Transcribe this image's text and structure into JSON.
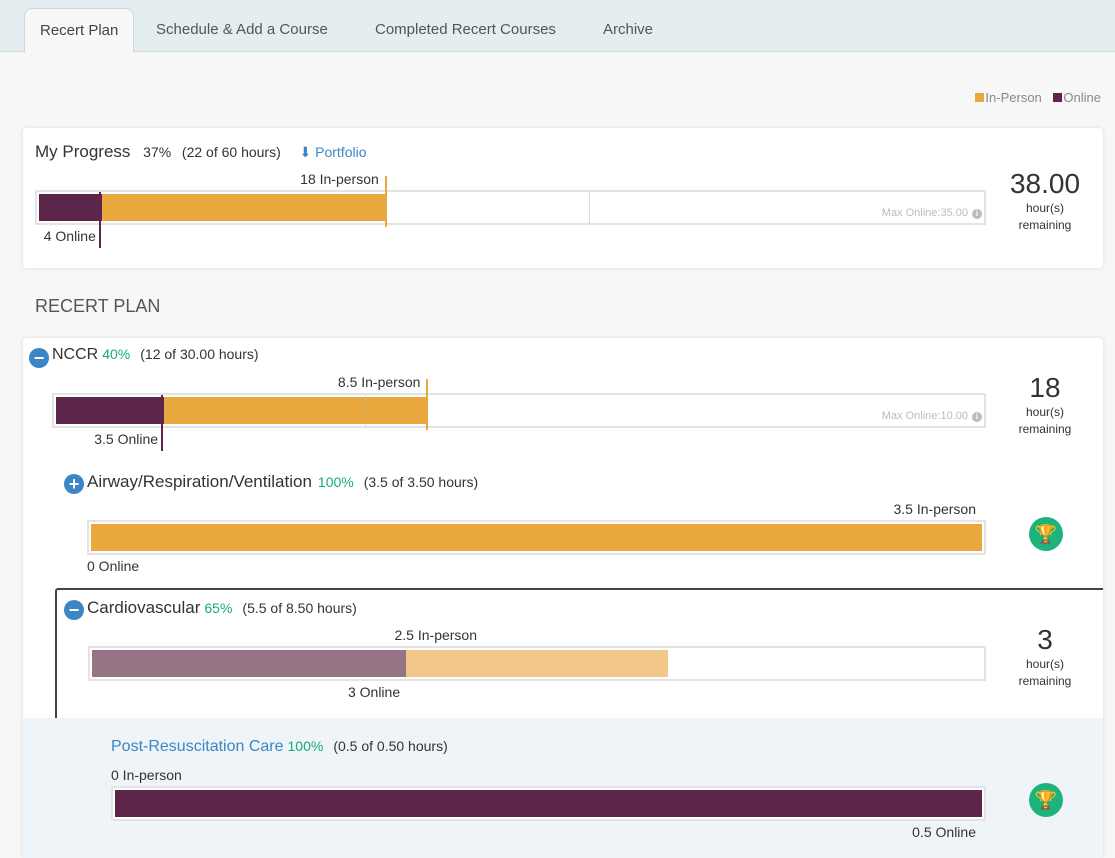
{
  "tabs": [
    {
      "label": "Recert Plan",
      "active": true
    },
    {
      "label": "Schedule & Add a Course"
    },
    {
      "label": "Completed Recert Courses"
    },
    {
      "label": "Archive"
    }
  ],
  "colors": {
    "in_person": "#e8a83e",
    "online": "#5b2649",
    "in_person_light": "#f1c88a",
    "online_light": "#977386",
    "percent": "#1aaa78",
    "link": "#3a87c8",
    "trophy": "#1db37c"
  },
  "legend": {
    "in_person": "In-Person",
    "online": "Online"
  },
  "progress": {
    "title": "My Progress",
    "percent": "37%",
    "hours": "(22 of 60 hours)",
    "portfolio": "Portfolio",
    "remaining": "38.00",
    "unit": "hour(s)",
    "remaining_label": "remaining",
    "bar": {
      "total": 60,
      "online": 4,
      "in_person": 18,
      "max_online": 35,
      "online_label": "4 Online",
      "in_person_label": "18 In-person",
      "max_label": "Max Online:35.00"
    }
  },
  "section_title": "RECERT PLAN",
  "nccr": {
    "title": "NCCR",
    "percent": "40%",
    "hours": "(12 of 30.00 hours)",
    "remaining": "18",
    "unit": "hour(s)",
    "remaining_label": "remaining",
    "bar": {
      "total": 30,
      "online": 3.5,
      "in_person": 8.5,
      "max_online": 10,
      "online_label": "3.5 Online",
      "in_person_label": "8.5 In-person",
      "max_label": "Max Online:10.00"
    }
  },
  "airway": {
    "title": "Airway/Respiration/Ventilation",
    "percent": "100%",
    "hours": "(3.5 of 3.50 hours)",
    "bar": {
      "total": 3.5,
      "online": 0,
      "in_person": 3.5,
      "online_label": "0 Online",
      "in_person_label": "3.5 In-person"
    }
  },
  "cardio": {
    "title": "Cardiovascular",
    "percent": "65%",
    "hours": "(5.5 of 8.50 hours)",
    "remaining": "3",
    "unit": "hour(s)",
    "remaining_label": "remaining",
    "bar": {
      "total": 8.5,
      "online": 3,
      "in_person": 2.5,
      "online_label": "3 Online",
      "in_person_label": "2.5 In-person",
      "light": true
    }
  },
  "post": {
    "title": "Post-Resuscitation Care",
    "percent": "100%",
    "hours": "(0.5 of 0.50 hours)",
    "bar": {
      "total": 0.5,
      "online": 0.5,
      "in_person": 0,
      "online_label": "0.5 Online",
      "in_person_label": "0 In-person"
    }
  }
}
